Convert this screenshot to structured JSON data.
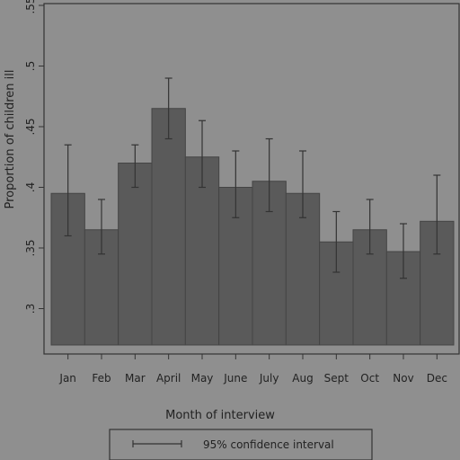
{
  "chart_data": {
    "type": "bar",
    "xlabel": "Month of interview",
    "ylabel": "Proportion of children ill",
    "ylim": [
      0.27,
      0.55
    ],
    "yticks": [
      0.3,
      0.35,
      0.4,
      0.45,
      0.5,
      0.55
    ],
    "ytick_labels": [
      ".3",
      ".35",
      ".4",
      ".45",
      ".5",
      ".55"
    ],
    "categories": [
      "Jan",
      "Feb",
      "Mar",
      "April",
      "May",
      "June",
      "July",
      "Aug",
      "Sept",
      "Oct",
      "Nov",
      "Dec"
    ],
    "values": [
      0.395,
      0.365,
      0.42,
      0.465,
      0.425,
      0.4,
      0.405,
      0.395,
      0.355,
      0.365,
      0.347,
      0.372
    ],
    "ci_lower": [
      0.36,
      0.345,
      0.4,
      0.44,
      0.4,
      0.375,
      0.38,
      0.375,
      0.33,
      0.345,
      0.325,
      0.345
    ],
    "ci_upper": [
      0.435,
      0.39,
      0.435,
      0.49,
      0.455,
      0.43,
      0.44,
      0.43,
      0.38,
      0.39,
      0.37,
      0.41
    ],
    "legend": {
      "label": "95% confidence interval",
      "placement": "bottom"
    },
    "colors": {
      "bar": "#5a5a5a",
      "background": "#8f8f8f",
      "axis": "#333333"
    },
    "grid": false
  }
}
